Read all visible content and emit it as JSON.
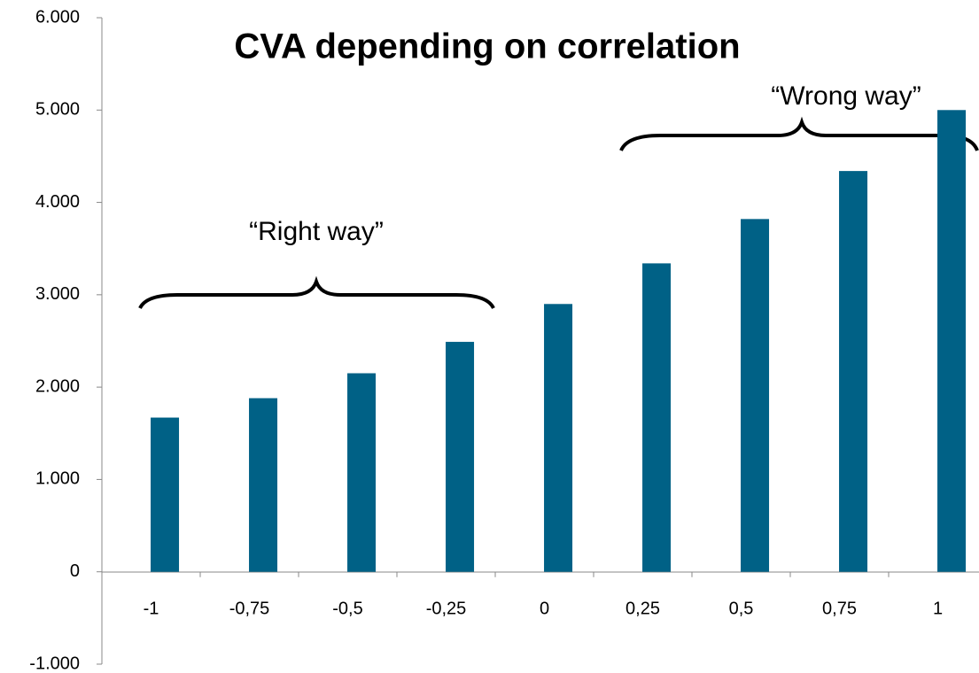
{
  "chart_data": {
    "type": "bar",
    "title": "CVA  depending on correlation",
    "categories": [
      "-1",
      "-0,75",
      "-0,5",
      "-0,25",
      "0",
      "0,25",
      "0,5",
      "0,75",
      "1"
    ],
    "values": [
      1670,
      1880,
      2150,
      2490,
      2900,
      3340,
      3820,
      4340,
      5000
    ],
    "color": "#006186",
    "ylim": [
      -1000,
      6000
    ],
    "yticks": [
      {
        "value": -1000,
        "label": "-1.000"
      },
      0,
      {
        "value": 1000,
        "label": "1.000"
      },
      {
        "value": 2000,
        "label": "2.000"
      },
      {
        "value": 3000,
        "label": "3.000"
      },
      {
        "value": 4000,
        "label": "4.000"
      },
      {
        "value": 5000,
        "label": "5.000"
      },
      {
        "value": 6000,
        "label": "6.000"
      }
    ],
    "grid": false,
    "annotations": [
      "“Right way”",
      "“Wrong way”"
    ]
  }
}
